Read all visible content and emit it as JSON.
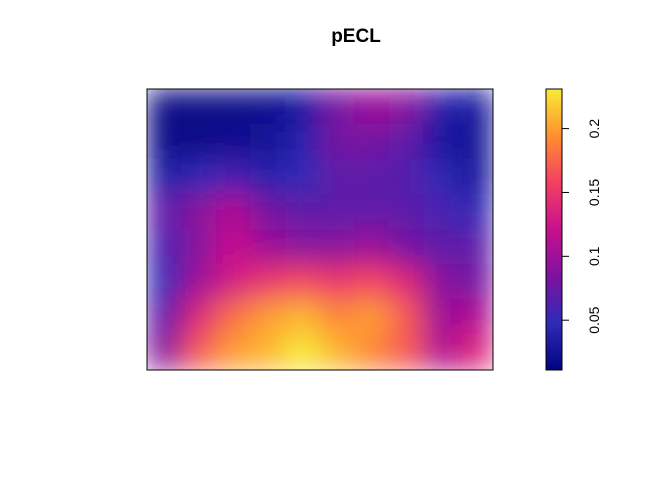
{
  "chart_data": {
    "type": "heatmap",
    "title": "pECL",
    "values": [
      [
        0.015,
        0.015,
        0.015,
        0.02,
        0.03,
        0.08,
        0.1,
        0.09,
        0.04,
        0.03
      ],
      [
        0.015,
        0.015,
        0.02,
        0.025,
        0.04,
        0.08,
        0.08,
        0.07,
        0.03,
        0.025
      ],
      [
        0.035,
        0.05,
        0.06,
        0.04,
        0.05,
        0.07,
        0.07,
        0.065,
        0.05,
        0.03
      ],
      [
        0.07,
        0.09,
        0.11,
        0.08,
        0.07,
        0.07,
        0.07,
        0.07,
        0.06,
        0.05
      ],
      [
        0.06,
        0.09,
        0.12,
        0.1,
        0.09,
        0.09,
        0.1,
        0.08,
        0.07,
        0.07
      ],
      [
        0.05,
        0.1,
        0.13,
        0.15,
        0.16,
        0.15,
        0.16,
        0.14,
        0.09,
        0.08
      ],
      [
        0.07,
        0.14,
        0.18,
        0.2,
        0.21,
        0.19,
        0.2,
        0.17,
        0.1,
        0.11
      ],
      [
        0.09,
        0.17,
        0.2,
        0.21,
        0.23,
        0.21,
        0.19,
        0.17,
        0.11,
        0.14
      ]
    ],
    "zlim": [
      0.011,
      0.231
    ],
    "zticks": [
      0.05,
      0.1,
      0.15,
      0.2
    ],
    "colormap": [
      "#020381",
      "#2E2BB8",
      "#7D12A0",
      "#C8108E",
      "#F43F63",
      "#FF8F2F",
      "#F8EC36"
    ]
  }
}
